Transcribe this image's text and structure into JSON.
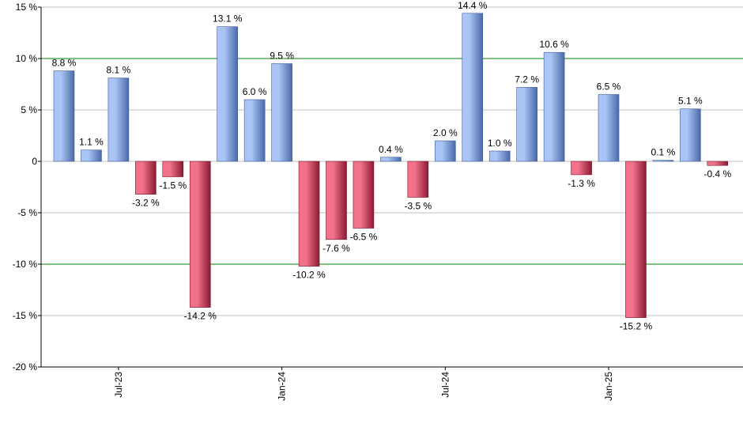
{
  "chart_data": {
    "type": "bar",
    "title": "",
    "xlabel": "",
    "ylabel": "",
    "ylim": [
      -20,
      15
    ],
    "y_ticks": [
      15,
      10,
      5,
      0,
      -5,
      -10,
      -15,
      -20
    ],
    "y_tick_labels": [
      "15 %",
      "10 %",
      "5 %",
      "0",
      "-5 %",
      "-10 %",
      "-15 %",
      "-20 %"
    ],
    "x_tick_labels": [
      {
        "label": "Jul-23",
        "index": 2
      },
      {
        "label": "Jan-24",
        "index": 8
      },
      {
        "label": "Jul-24",
        "index": 14
      },
      {
        "label": "Jan-25",
        "index": 20
      }
    ],
    "reference_lines": [
      10,
      -10
    ],
    "grid": true,
    "values": [
      8.8,
      1.1,
      8.1,
      -3.2,
      -1.5,
      -14.2,
      13.1,
      6.0,
      9.5,
      -10.2,
      -7.6,
      -6.5,
      0.4,
      -3.5,
      2.0,
      14.4,
      1.0,
      7.2,
      10.6,
      -1.3,
      6.5,
      -15.2,
      0.1,
      5.1,
      -0.4
    ],
    "value_labels": [
      "8.8 %",
      "1.1 %",
      "8.1 %",
      "-3.2 %",
      "-1.5 %",
      "-14.2 %",
      "13.1 %",
      "6.0 %",
      "9.5 %",
      "-10.2 %",
      "-7.6 %",
      "-6.5 %",
      "0.4 %",
      "-3.5 %",
      "2.0 %",
      "14.4 %",
      "1.0 %",
      "7.2 %",
      "10.6 %",
      "-1.3 %",
      "6.5 %",
      "-15.2 %",
      "0.1 %",
      "5.1 %",
      "-0.4 %"
    ],
    "colors": {
      "positive_light": "#a9c4f5",
      "positive_dark": "#4a6aa8",
      "negative_light": "#f2728c",
      "negative_dark": "#8c1a33",
      "grid": "#c0c0c0",
      "reference_line": "#008000",
      "axis": "#000000"
    }
  }
}
